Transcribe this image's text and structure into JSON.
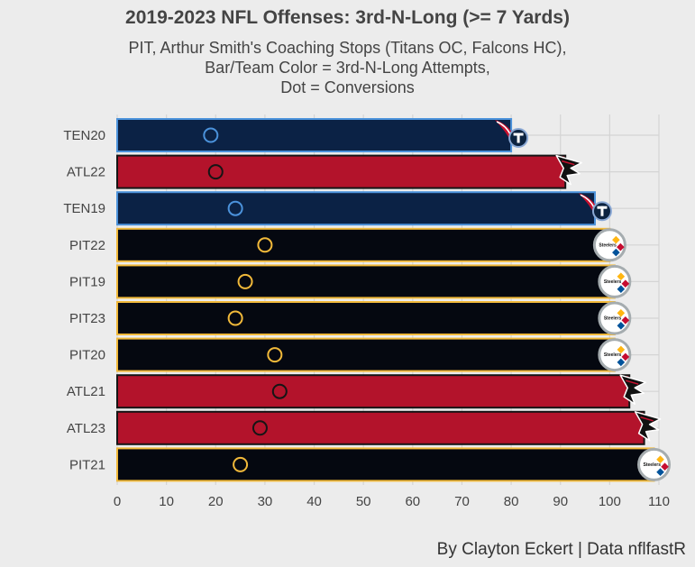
{
  "title": "2019-2023 NFL Offenses: 3rd-N-Long (>= 7 Yards)",
  "subtitle_lines": [
    "PIT, Arthur Smith's Coaching Stops (Titans OC, Falcons HC),",
    "Bar/Team Color = 3rd-N-Long Attempts,",
    "Dot = Conversions"
  ],
  "caption": "By Clayton Eckert | Data nflfastR",
  "colors": {
    "TEN": {
      "fill": "#0b2245",
      "outline": "#4b92db",
      "dot": "#4b92db"
    },
    "ATL": {
      "fill": "#b3132b",
      "outline": "#151515",
      "dot": "#151515"
    },
    "PIT": {
      "fill": "#050810",
      "outline": "#f1b93a",
      "dot": "#f1b93a"
    }
  },
  "chart_data": {
    "type": "bar",
    "orientation": "horizontal",
    "xlim": [
      0,
      110
    ],
    "x_ticks": [
      0,
      10,
      20,
      30,
      40,
      50,
      60,
      70,
      80,
      90,
      100,
      110
    ],
    "grid": true,
    "categories": [
      "TEN20",
      "ATL22",
      "TEN19",
      "PIT22",
      "PIT19",
      "PIT23",
      "PIT20",
      "ATL21",
      "ATL23",
      "PIT21"
    ],
    "teams": [
      "TEN",
      "ATL",
      "TEN",
      "PIT",
      "PIT",
      "PIT",
      "PIT",
      "ATL",
      "ATL",
      "PIT"
    ],
    "series": [
      {
        "values": [
          80,
          91,
          97,
          100,
          101,
          101,
          101,
          104,
          107,
          109
        ]
      },
      {
        "values": [
          19,
          20,
          24,
          30,
          26,
          24,
          32,
          33,
          29,
          25
        ]
      }
    ],
    "logos": [
      "titans-logo",
      "falcons-logo",
      "titans-logo",
      "steelers-logo",
      "steelers-logo",
      "steelers-logo",
      "steelers-logo",
      "falcons-logo",
      "falcons-logo",
      "steelers-logo"
    ]
  }
}
